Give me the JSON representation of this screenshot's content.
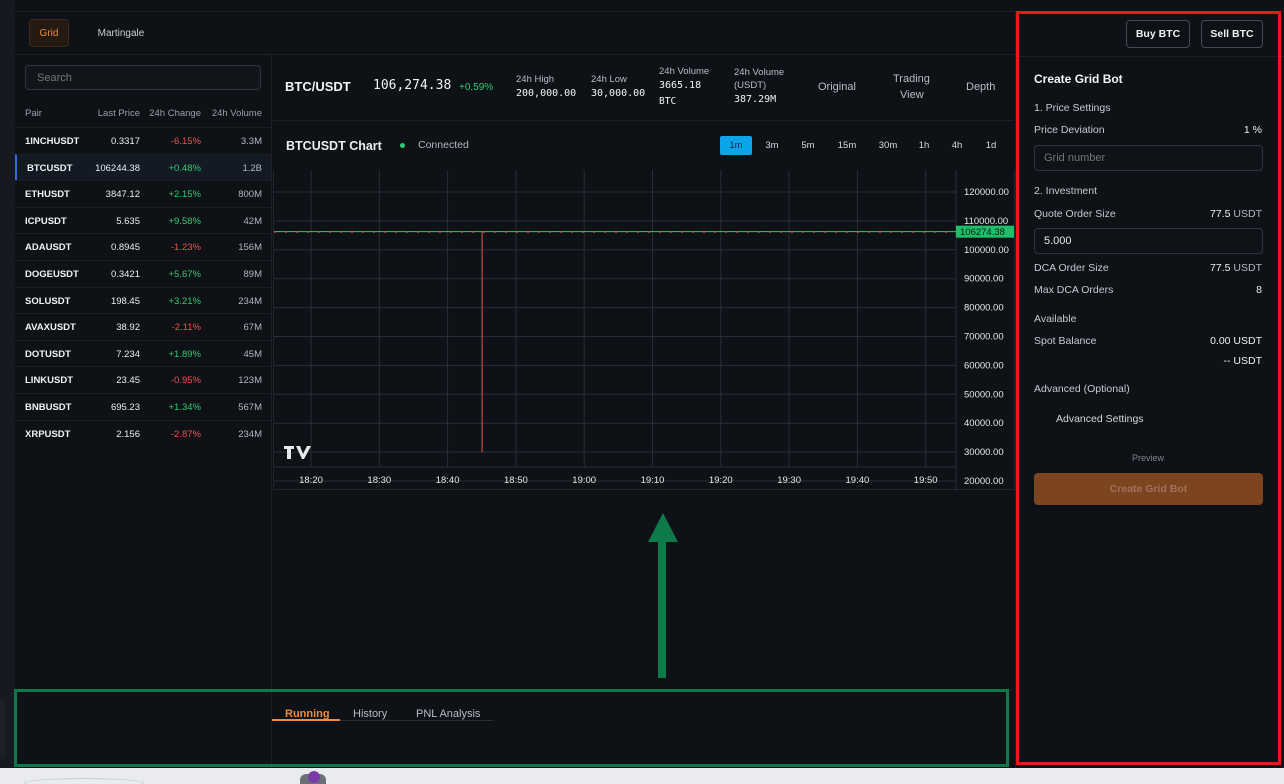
{
  "top_tabs": {
    "grid": "Grid",
    "martingale": "Martingale"
  },
  "search": {
    "placeholder": "Search"
  },
  "table": {
    "headers": [
      "Pair",
      "Last Price",
      "24h Change",
      "24h Volume"
    ],
    "rows": [
      {
        "pair": "1INCHUSDT",
        "price": "0.3317",
        "change": "-6.15%",
        "dir": "down",
        "volume": "3.3M"
      },
      {
        "pair": "BTCUSDT",
        "price": "106244.38",
        "change": "+0.48%",
        "dir": "up",
        "volume": "1.2B"
      },
      {
        "pair": "ETHUSDT",
        "price": "3847.12",
        "change": "+2.15%",
        "dir": "up",
        "volume": "800M"
      },
      {
        "pair": "ICPUSDT",
        "price": "5.635",
        "change": "+9.58%",
        "dir": "up",
        "volume": "42M"
      },
      {
        "pair": "ADAUSDT",
        "price": "0.8945",
        "change": "-1.23%",
        "dir": "down",
        "volume": "156M"
      },
      {
        "pair": "DOGEUSDT",
        "price": "0.3421",
        "change": "+5.67%",
        "dir": "up",
        "volume": "89M"
      },
      {
        "pair": "SOLUSDT",
        "price": "198.45",
        "change": "+3.21%",
        "dir": "up",
        "volume": "234M"
      },
      {
        "pair": "AVAXUSDT",
        "price": "38.92",
        "change": "-2.11%",
        "dir": "down",
        "volume": "67M"
      },
      {
        "pair": "DOTUSDT",
        "price": "7.234",
        "change": "+1.89%",
        "dir": "up",
        "volume": "45M"
      },
      {
        "pair": "LINKUSDT",
        "price": "23.45",
        "change": "-0.95%",
        "dir": "down",
        "volume": "123M"
      },
      {
        "pair": "BNBUSDT",
        "price": "695.23",
        "change": "+1.34%",
        "dir": "up",
        "volume": "567M"
      },
      {
        "pair": "XRPUSDT",
        "price": "2.156",
        "change": "-2.87%",
        "dir": "down",
        "volume": "234M"
      }
    ]
  },
  "ticker": {
    "pair": "BTC/USDT",
    "price": "106,274.38",
    "change": "+0.59%",
    "high_label": "24h High",
    "high": "200,000.00",
    "low_label": "24h Low",
    "low": "30,000.00",
    "vol_label": "24h Volume",
    "vol": "3665.18",
    "vol_unit": "BTC",
    "volusdt_label_1": "24h Volume",
    "volusdt_label_2": "(USDT)",
    "volusdt": "387.29M",
    "view_original": "Original",
    "view_tv_1": "Trading",
    "view_tv_2": "View",
    "view_depth": "Depth"
  },
  "chart_head": {
    "title": "BTCUSDT Chart",
    "status": "Connected",
    "timeframes": [
      "1m",
      "3m",
      "5m",
      "15m",
      "30m",
      "1h",
      "4h",
      "1d"
    ],
    "active_timeframe": "1m"
  },
  "chart_data": {
    "type": "line",
    "x": [
      "18:20",
      "18:30",
      "18:40",
      "18:50",
      "19:00",
      "19:10",
      "19:20",
      "19:30",
      "19:40",
      "19:50"
    ],
    "y_ticks": [
      "120000.00",
      "110000.00",
      "100000.00",
      "90000.00",
      "80000.00",
      "70000.00",
      "60000.00",
      "50000.00",
      "40000.00",
      "30000.00",
      "20000.00"
    ],
    "ylim": [
      20000,
      120000
    ],
    "last_price_label": "106274.38",
    "last_price": 106274.38,
    "spike": {
      "time": "18:45",
      "high": 106500,
      "low": 30000
    }
  },
  "bottom_tabs": [
    "Running",
    "History",
    "PNL Analysis"
  ],
  "right": {
    "buy": "Buy BTC",
    "sell": "Sell BTC",
    "title": "Create Grid Bot",
    "sec1": "1. Price Settings",
    "price_dev_label": "Price Deviation",
    "price_dev_value": "1 %",
    "grid_placeholder": "Grid number",
    "sec2": "2. Investment",
    "quote_label": "Quote Order Size",
    "quote_value": "77.5",
    "quote_unit": "USDT",
    "quote_input": "5.000",
    "dca_label": "DCA Order Size",
    "dca_value": "77.5",
    "dca_unit": "USDT",
    "maxdca_label": "Max DCA Orders",
    "maxdca_value": "8",
    "available": "Available",
    "spot_label": "Spot Balance",
    "spot_value": "0.00 USDT",
    "spot_value2": "-- USDT",
    "advanced_opt": "Advanced (Optional)",
    "advanced_settings": "Advanced Settings",
    "preview": "Preview",
    "create": "Create Grid Bot"
  }
}
